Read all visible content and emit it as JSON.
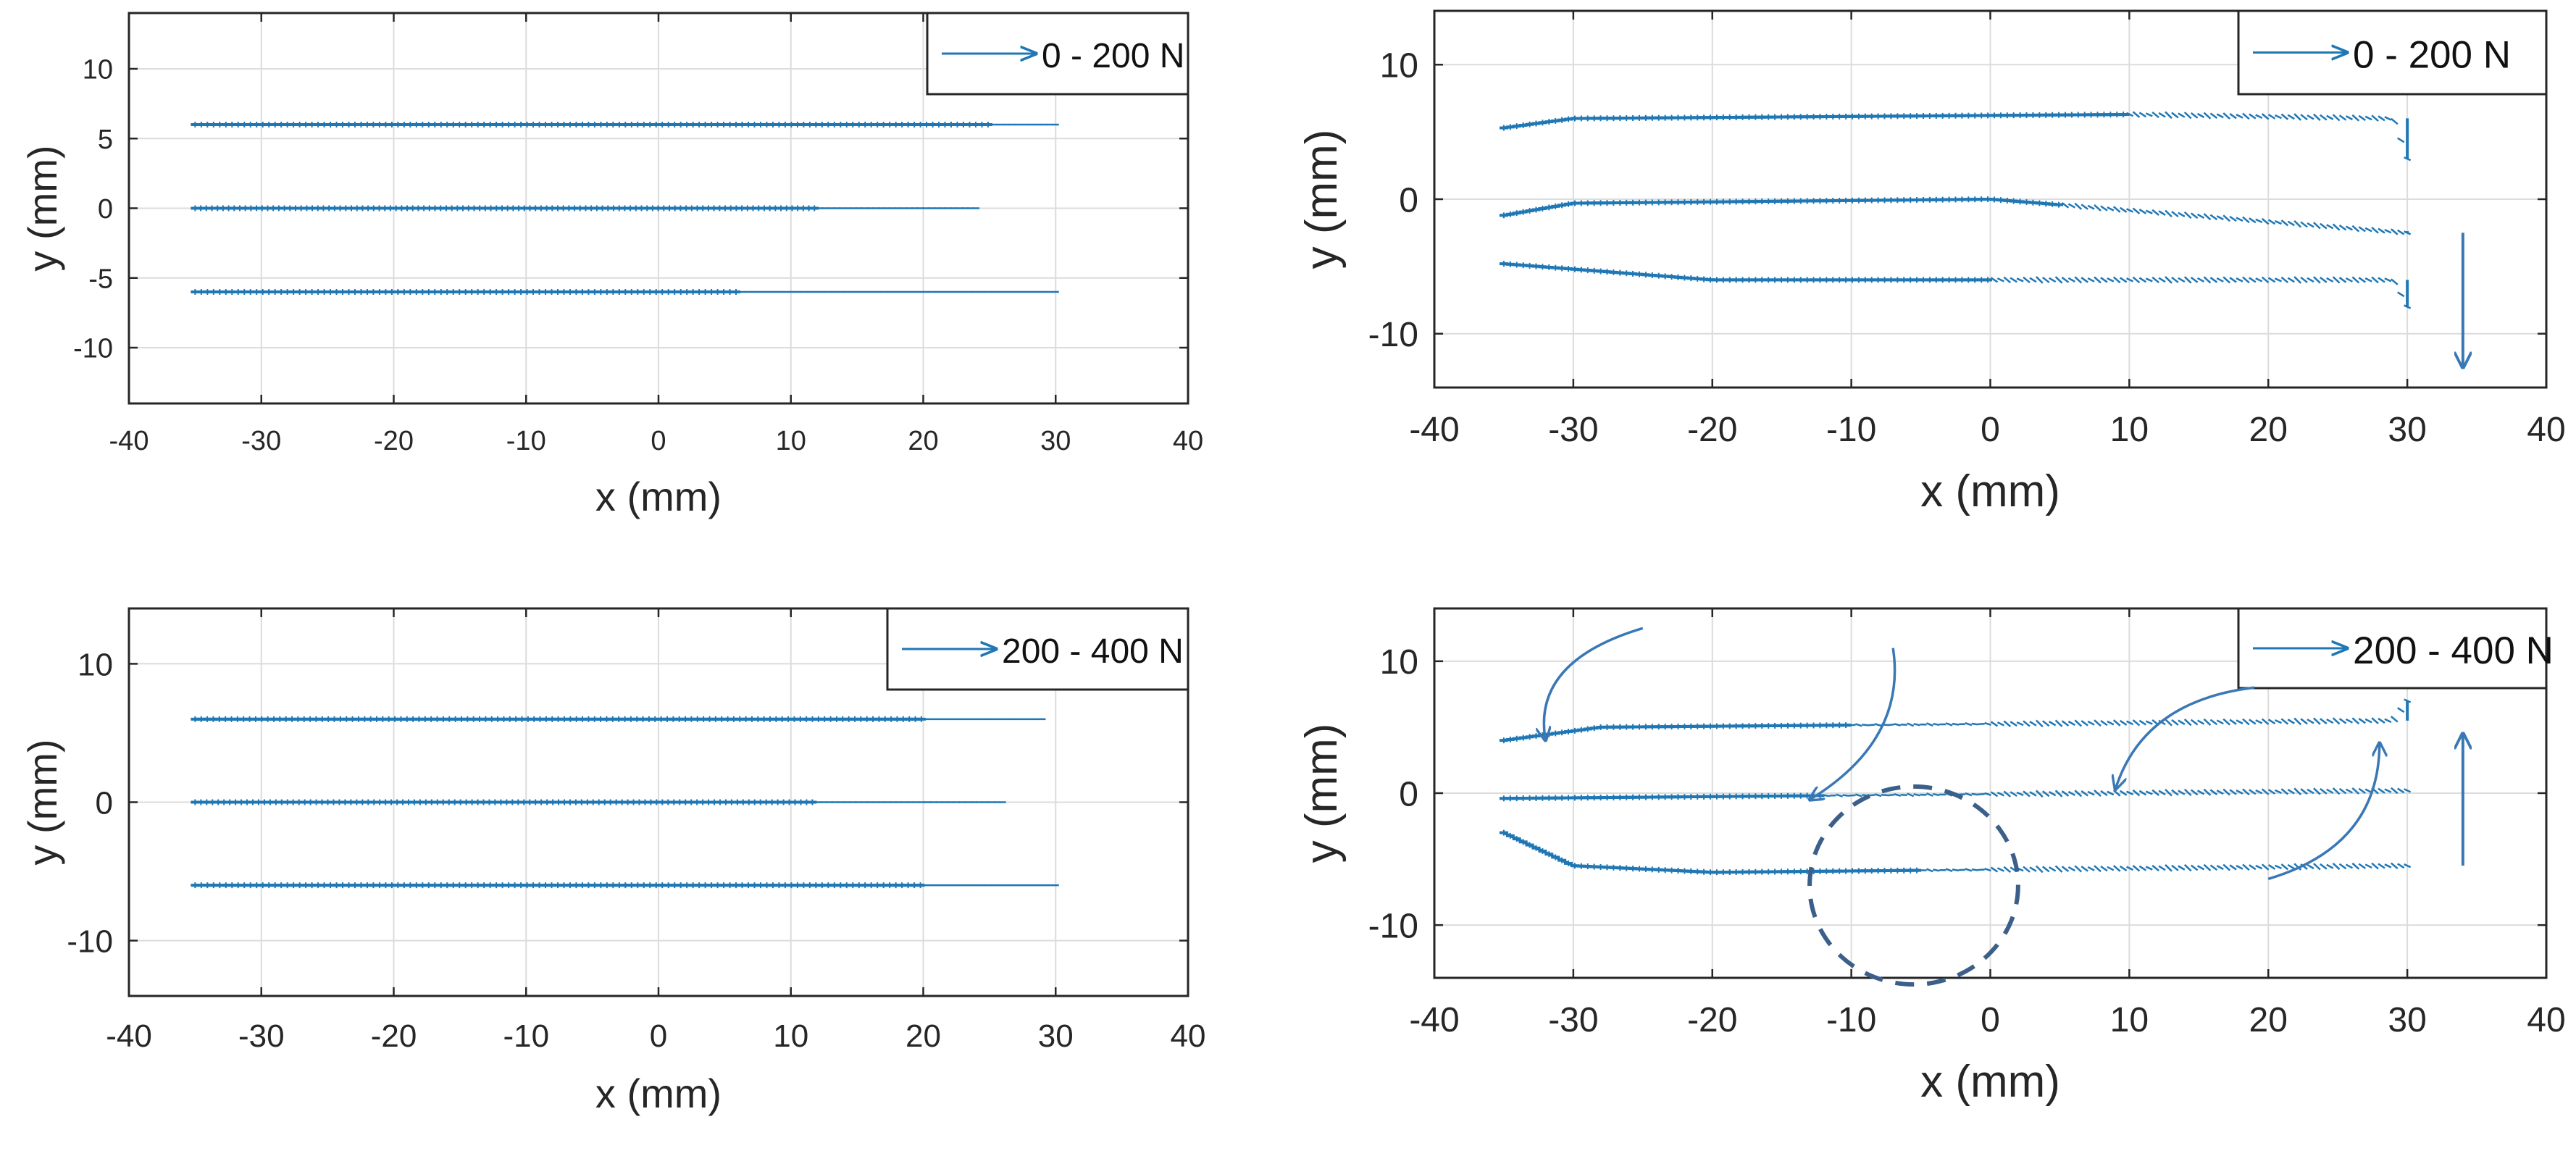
{
  "chart_data": [
    {
      "type": "quiver",
      "title": "",
      "xlabel": "x (mm)",
      "ylabel": "y (mm)",
      "xlim": [
        -40,
        40
      ],
      "ylim": [
        -14,
        14
      ],
      "xticks": [
        "-40",
        "-30",
        "-20",
        "-10",
        "0",
        "10",
        "20",
        "30",
        "40"
      ],
      "yticks": [
        "10",
        "5",
        "0",
        "-5",
        "-10"
      ],
      "grid": true,
      "legend": {
        "label": "0 - 200 N",
        "position": "top-right"
      },
      "series": [
        {
          "name": "track y=6",
          "y": 6,
          "x_start": -35,
          "x_end": 30,
          "solid_until": 25,
          "drift": []
        },
        {
          "name": "track y=0",
          "y": 0,
          "x_start": -35,
          "x_end": 24,
          "solid_until": 12,
          "drift": []
        },
        {
          "name": "track y=-6",
          "y": -6,
          "x_start": -35,
          "x_end": 30,
          "solid_until": 6,
          "drift": []
        }
      ],
      "annotations": []
    },
    {
      "type": "quiver",
      "title": "",
      "xlabel": "x (mm)",
      "ylabel": "y (mm)",
      "xlim": [
        -40,
        40
      ],
      "ylim": [
        -14,
        14
      ],
      "xticks": [
        "-40",
        "-30",
        "-20",
        "-10",
        "0",
        "10",
        "20",
        "30",
        "40"
      ],
      "yticks": [
        "10",
        "0",
        "-10"
      ],
      "grid": true,
      "legend": {
        "label": "0 - 200 N",
        "position": "top-right"
      },
      "series": [
        {
          "name": "track y=6",
          "y": 6,
          "x_start": -35,
          "x_end": 30,
          "solid_until": 10,
          "drift": [
            [
              -35,
              -0.7
            ],
            [
              -30,
              0
            ],
            [
              10,
              0.3
            ],
            [
              29,
              0
            ],
            [
              30,
              -3
            ]
          ]
        },
        {
          "name": "track y=0",
          "y": 0,
          "x_start": -35,
          "x_end": 30,
          "solid_until": 5,
          "drift": [
            [
              -35,
              -1.2
            ],
            [
              -30,
              -0.3
            ],
            [
              0,
              0
            ],
            [
              30,
              -2.5
            ]
          ]
        },
        {
          "name": "track y=-6",
          "y": -6,
          "x_start": -35,
          "x_end": 30,
          "solid_until": 0,
          "drift": [
            [
              -35,
              1.2
            ],
            [
              -20,
              0
            ],
            [
              29,
              0
            ],
            [
              30,
              -2
            ]
          ]
        }
      ],
      "annotations": [
        {
          "type": "arrow",
          "direction": "down",
          "x": 34,
          "y_from": -2.5,
          "y_to": -12.5
        }
      ]
    },
    {
      "type": "quiver",
      "title": "",
      "xlabel": "x (mm)",
      "ylabel": "y (mm)",
      "xlim": [
        -40,
        40
      ],
      "ylim": [
        -14,
        14
      ],
      "xticks": [
        "-40",
        "-30",
        "-20",
        "-10",
        "0",
        "10",
        "20",
        "30",
        "40"
      ],
      "yticks": [
        "10",
        "0",
        "-10"
      ],
      "grid": true,
      "legend": {
        "label": "200 - 400 N",
        "position": "top-right"
      },
      "series": [
        {
          "name": "track y=6",
          "y": 6,
          "x_start": -35,
          "x_end": 29,
          "solid_until": 20,
          "drift": []
        },
        {
          "name": "track y=0",
          "y": 0,
          "x_start": -35,
          "x_end": 26,
          "solid_until": 12,
          "drift": []
        },
        {
          "name": "track y=-6",
          "y": -6,
          "x_start": -35,
          "x_end": 30,
          "solid_until": 20,
          "drift": []
        }
      ],
      "annotations": []
    },
    {
      "type": "quiver",
      "title": "",
      "xlabel": "x (mm)",
      "ylabel": "y (mm)",
      "xlim": [
        -40,
        40
      ],
      "ylim": [
        -14,
        14
      ],
      "xticks": [
        "-40",
        "-30",
        "-20",
        "-10",
        "0",
        "10",
        "20",
        "30",
        "40"
      ],
      "yticks": [
        "10",
        "0",
        "-10"
      ],
      "grid": true,
      "legend": {
        "label": "200 - 400 N",
        "position": "top-right"
      },
      "series": [
        {
          "name": "track y=5",
          "y": 5,
          "x_start": -35,
          "x_end": 30,
          "solid_until": -10,
          "drift": [
            [
              -35,
              -1
            ],
            [
              -28,
              0
            ],
            [
              29,
              0.5
            ],
            [
              30,
              2
            ]
          ]
        },
        {
          "name": "track y=0",
          "y": 0,
          "x_start": -35,
          "x_end": 30,
          "solid_until": -12,
          "drift": [
            [
              -35,
              -0.4
            ],
            [
              30,
              0.2
            ]
          ]
        },
        {
          "name": "track y=-6",
          "y": -6,
          "x_start": -35,
          "x_end": 30,
          "solid_until": -5,
          "drift": [
            [
              -35,
              3
            ],
            [
              -30,
              0.5
            ],
            [
              -20,
              0
            ],
            [
              30,
              0.5
            ]
          ]
        }
      ],
      "annotations": [
        {
          "type": "curved-arrow",
          "points": [
            [
              -25,
              12.5
            ],
            [
              -33,
              10
            ],
            [
              -32,
              4
            ]
          ]
        },
        {
          "type": "curved-arrow",
          "points": [
            [
              -7,
              11
            ],
            [
              -6,
              4
            ],
            [
              -13,
              -0.5
            ]
          ]
        },
        {
          "type": "curved-arrow",
          "points": [
            [
              19,
              8
            ],
            [
              11,
              7
            ],
            [
              9,
              0.3
            ]
          ]
        },
        {
          "type": "curved-arrow",
          "points": [
            [
              20,
              -6.5
            ],
            [
              28,
              -4
            ],
            [
              28,
              3.8
            ]
          ]
        },
        {
          "type": "arrow",
          "direction": "up",
          "x": 34,
          "y_from": -5.5,
          "y_to": 4.5
        },
        {
          "type": "dashed-circle",
          "cx": -5.5,
          "cy": -7,
          "r": 7.5
        }
      ]
    }
  ]
}
